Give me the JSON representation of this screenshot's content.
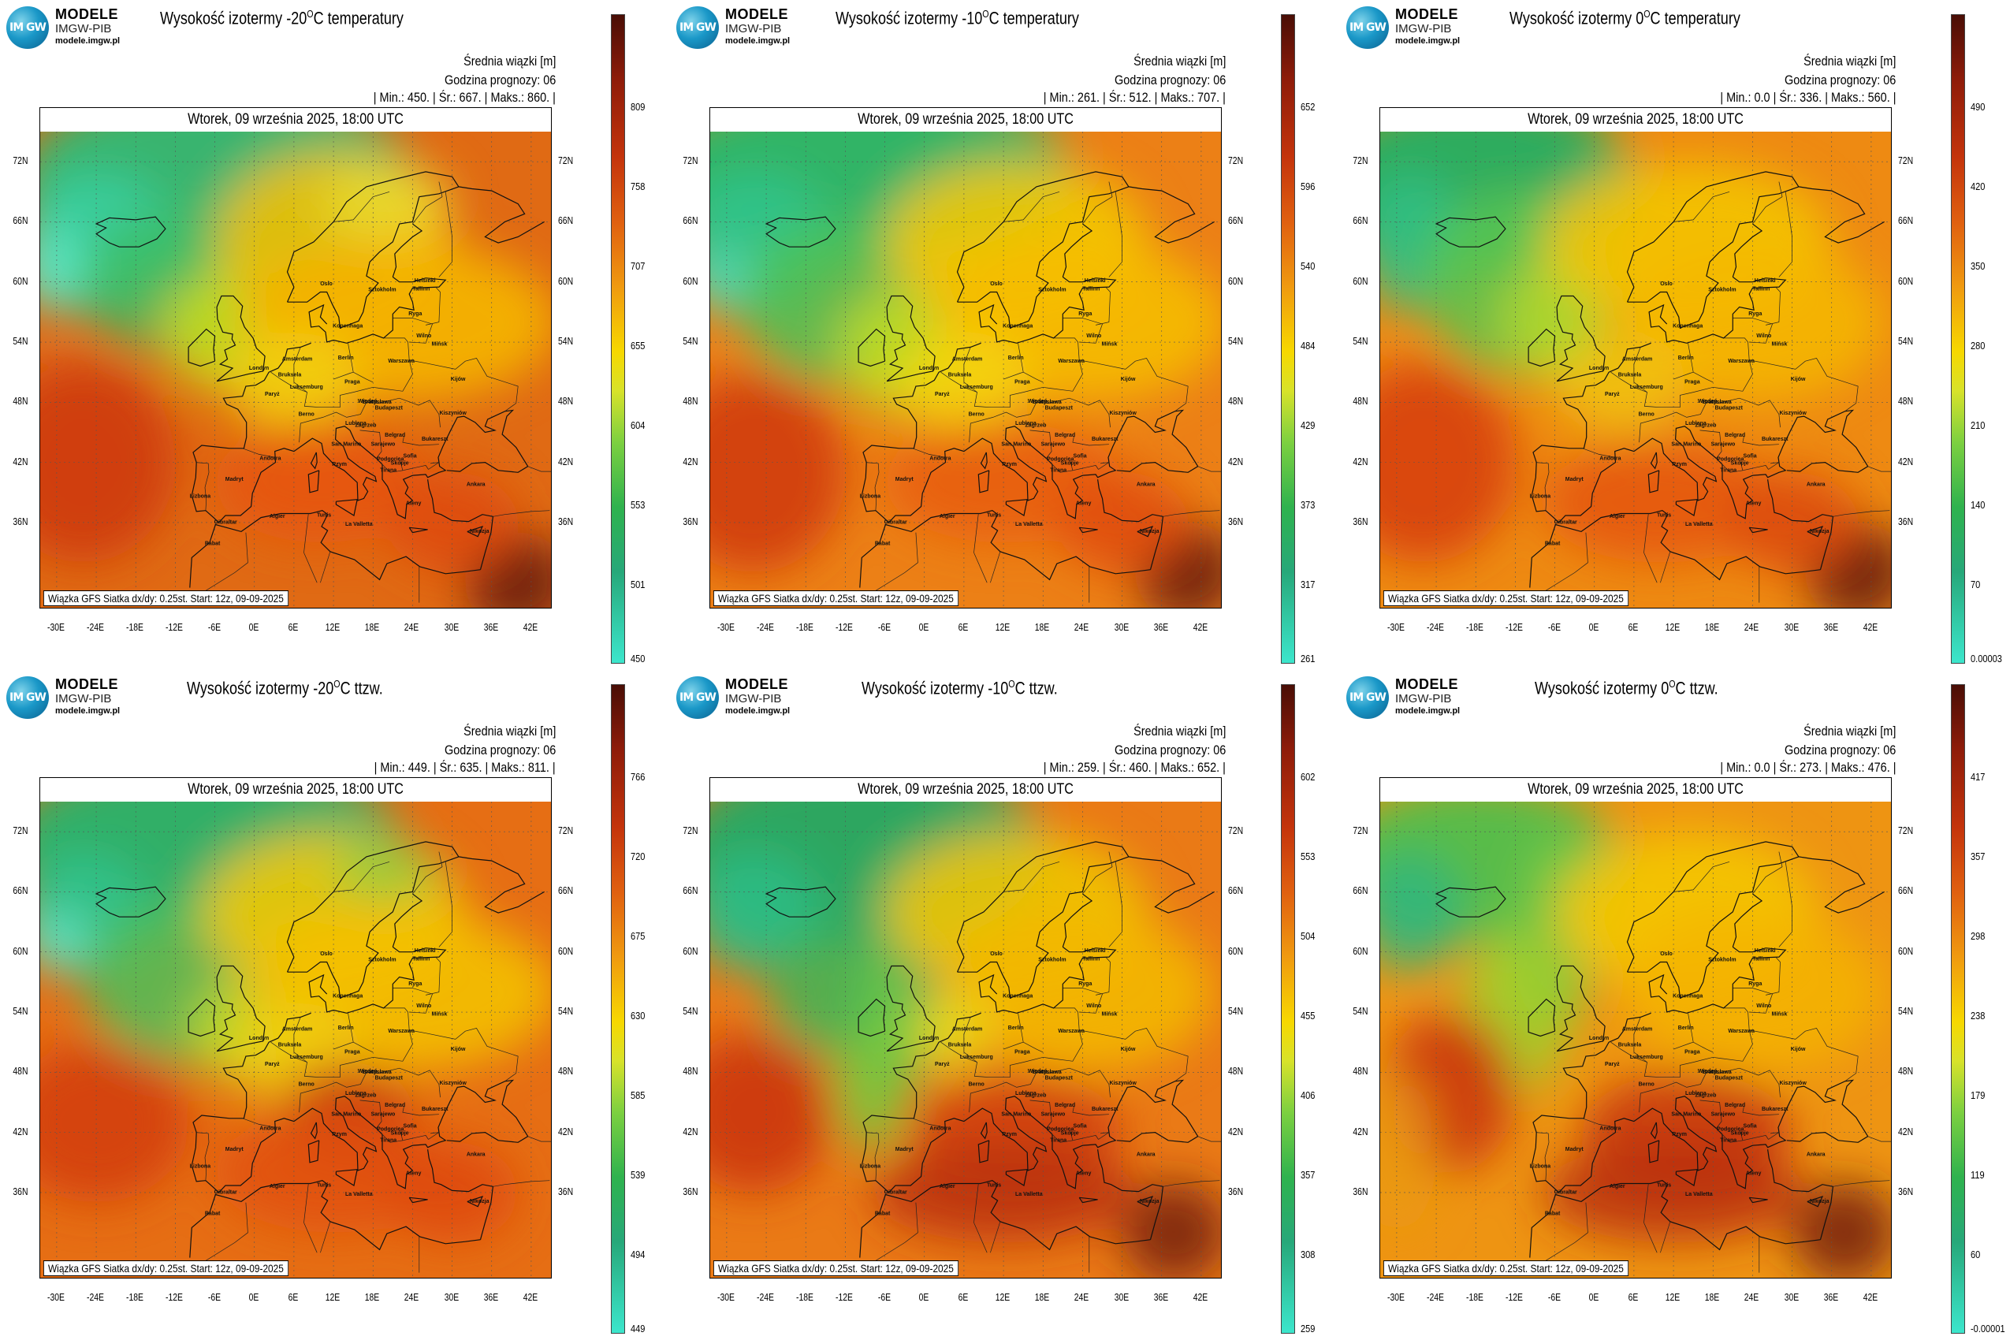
{
  "logo": {
    "badge": "IM GW",
    "line1": "MODELE",
    "line2": "IMGW-PIB",
    "line3": "modele.imgw.pl"
  },
  "common": {
    "beam": "Średnia wiązki [m]",
    "forecast_hour": "Godzina prognozy: 06",
    "date": "Wtorek, 09 września 2025, 18:00 UTC",
    "footer": "Wiązka GFS Siatka dx/dy: 0.25st. Start: 12z, 09-09-2025",
    "lat_labels": [
      "72N",
      "66N",
      "60N",
      "54N",
      "48N",
      "42N",
      "36N"
    ],
    "lon_labels": [
      "-30E",
      "-24E",
      "-18E",
      "-12E",
      "-6E",
      "0E",
      "6E",
      "12E",
      "18E",
      "24E",
      "30E",
      "36E",
      "42E"
    ],
    "min_label": "Min.:",
    "avg_label": "Śr.:",
    "max_label": "Maks.:"
  },
  "cities": [
    "Oslo",
    "Sztokholm",
    "Helsinki",
    "Tallinn",
    "Ryga",
    "Kopenhaga",
    "Wilno",
    "Mińsk",
    "Amsterdam",
    "Londyn",
    "Berlin",
    "Warszawa",
    "Bruksela",
    "Luksemburg",
    "Praga",
    "Kijów",
    "Paryż",
    "Wiedeń",
    "Bratysława",
    "Kiszyniów",
    "Berno",
    "Budapeszt",
    "Lublana",
    "Zagrzeb",
    "Belgrad",
    "Bukareszt",
    "Andorra",
    "San Marino",
    "Sarajewo",
    "Podgorica",
    "Sofia",
    "Madryt",
    "Rzym",
    "Skopje",
    "Tirana",
    "Ankara",
    "Lizbona",
    "Ateny",
    "Gibraltar",
    "Algier",
    "Tunis",
    "La Valletta",
    "Rabat",
    "Nikozja"
  ],
  "panels": [
    {
      "title_pre": "Wysokość izotermy -20",
      "title_sup": "O",
      "title_post": "C temperatury",
      "min": "450.",
      "avg": "667.",
      "max": "860.",
      "colorbar": [
        "809",
        "758",
        "707",
        "655",
        "604",
        "553",
        "501",
        "450"
      ],
      "title_offset": "203"
    },
    {
      "title_pre": "Wysokość izotermy -10",
      "title_sup": "O",
      "title_post": "C temperatury",
      "min": "261.",
      "avg": "512.",
      "max": "707.",
      "colorbar": [
        "652",
        "596",
        "540",
        "484",
        "429",
        "373",
        "317",
        "261"
      ],
      "title_offset": "210"
    },
    {
      "title_pre": "Wysokość izotermy 0",
      "title_sup": "O",
      "title_post": "C temperatury",
      "min": "0.0",
      "avg": "336.",
      "max": "560.",
      "colorbar": [
        "490",
        "420",
        "350",
        "280",
        "210",
        "140",
        "70",
        "0.00003"
      ],
      "title_offset": "215"
    },
    {
      "title_pre": "Wysokość izotermy -20",
      "title_sup": "O",
      "title_post": "C ttzw.",
      "min": "449.",
      "avg": "635.",
      "max": "811.",
      "colorbar": [
        "766",
        "720",
        "675",
        "630",
        "585",
        "539",
        "494",
        "449"
      ],
      "title_offset": "237"
    },
    {
      "title_pre": "Wysokość izotermy -10",
      "title_sup": "O",
      "title_post": "C ttzw.",
      "min": "259.",
      "avg": "460.",
      "max": "652.",
      "colorbar": [
        "602",
        "553",
        "504",
        "455",
        "406",
        "357",
        "308",
        "259"
      ],
      "title_offset": "243"
    },
    {
      "title_pre": "Wysokość izotermy 0",
      "title_sup": "O",
      "title_post": "C ttzw.",
      "min": "0.0",
      "avg": "273.",
      "max": "476.",
      "colorbar": [
        "417",
        "357",
        "298",
        "238",
        "179",
        "119",
        "60",
        "-0.00001"
      ],
      "title_offset": "247"
    }
  ],
  "colors": {
    "low": "#3ee0c4",
    "mid_green": "#1faa5a",
    "yellow": "#f4e800",
    "orange": "#f0a000",
    "red": "#d83a10",
    "dark": "#5a1408"
  }
}
